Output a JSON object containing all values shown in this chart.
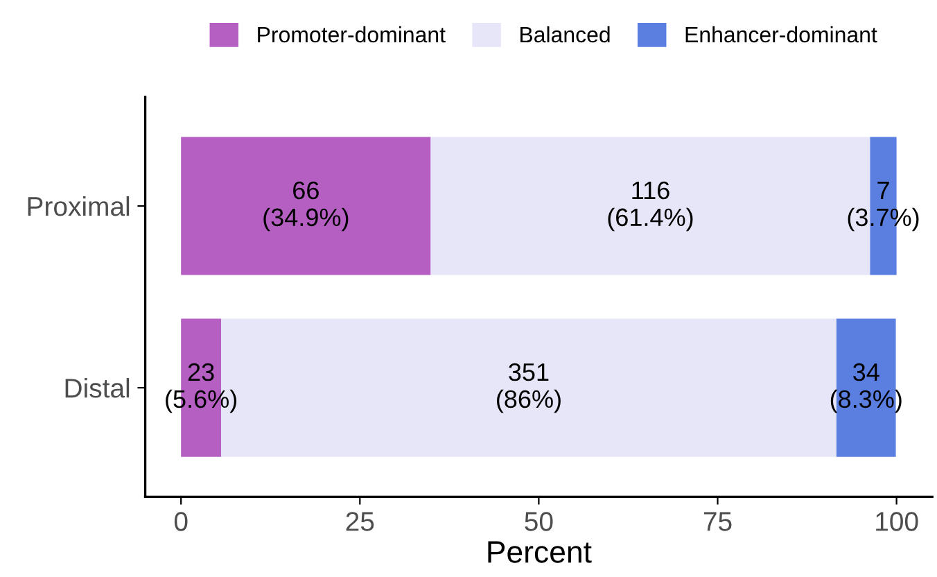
{
  "chart_data": {
    "type": "bar",
    "orientation": "horizontal",
    "stacked": true,
    "xlabel": "Percent",
    "categories": [
      "Proximal",
      "Distal"
    ],
    "series": [
      {
        "name": "Promoter-dominant",
        "color": "#b55fc3",
        "values": [
          34.9,
          5.6
        ],
        "value_labels": [
          "66\n(34.9%)",
          "23\n(5.6%)"
        ]
      },
      {
        "name": "Balanced",
        "color": "#e6e6f8",
        "values": [
          61.4,
          86
        ],
        "value_labels": [
          "116\n(61.4%)",
          "351\n(86%)"
        ]
      },
      {
        "name": "Enhancer-dominant",
        "color": "#5b7fe1",
        "values": [
          3.7,
          8.3
        ],
        "value_labels": [
          "7\n(3.7%)",
          "34\n(8.3%)"
        ]
      }
    ],
    "xlim": [
      -5,
      105
    ],
    "xticks": [
      0,
      25,
      50,
      75,
      100
    ],
    "grid": false,
    "legend": "top"
  }
}
